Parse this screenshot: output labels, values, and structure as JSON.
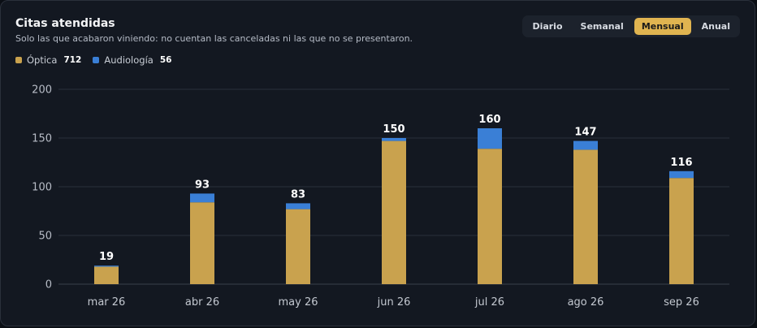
{
  "card": {
    "title": "Citas atendidas",
    "subtitle": "Solo las que acabaron viniendo: no cuentan las canceladas ni las que no se presentaron."
  },
  "legend": [
    {
      "name": "Óptica",
      "total": "712",
      "color": "#c9a24e"
    },
    {
      "name": "Audiología",
      "total": "56",
      "color": "#3a7fd6"
    }
  ],
  "period_selector": {
    "options": [
      "Diario",
      "Semanal",
      "Mensual",
      "Anual"
    ],
    "selected": "Mensual"
  },
  "chart_data": {
    "type": "bar",
    "stacked": true,
    "categories": [
      "mar 26",
      "abr 26",
      "may 26",
      "jun 26",
      "jul 26",
      "ago 26",
      "sep 26"
    ],
    "series": [
      {
        "name": "Óptica",
        "color": "#c9a24e",
        "values": [
          18,
          84,
          77,
          147,
          139,
          138,
          109
        ]
      },
      {
        "name": "Audiología",
        "color": "#3a7fd6",
        "values": [
          1,
          9,
          6,
          3,
          21,
          9,
          7
        ]
      }
    ],
    "totals": [
      19,
      93,
      83,
      150,
      160,
      147,
      116
    ],
    "ylim": [
      0,
      200
    ],
    "yticks": [
      0,
      50,
      100,
      150,
      200
    ],
    "grid": true,
    "legend_position": "top-left"
  }
}
